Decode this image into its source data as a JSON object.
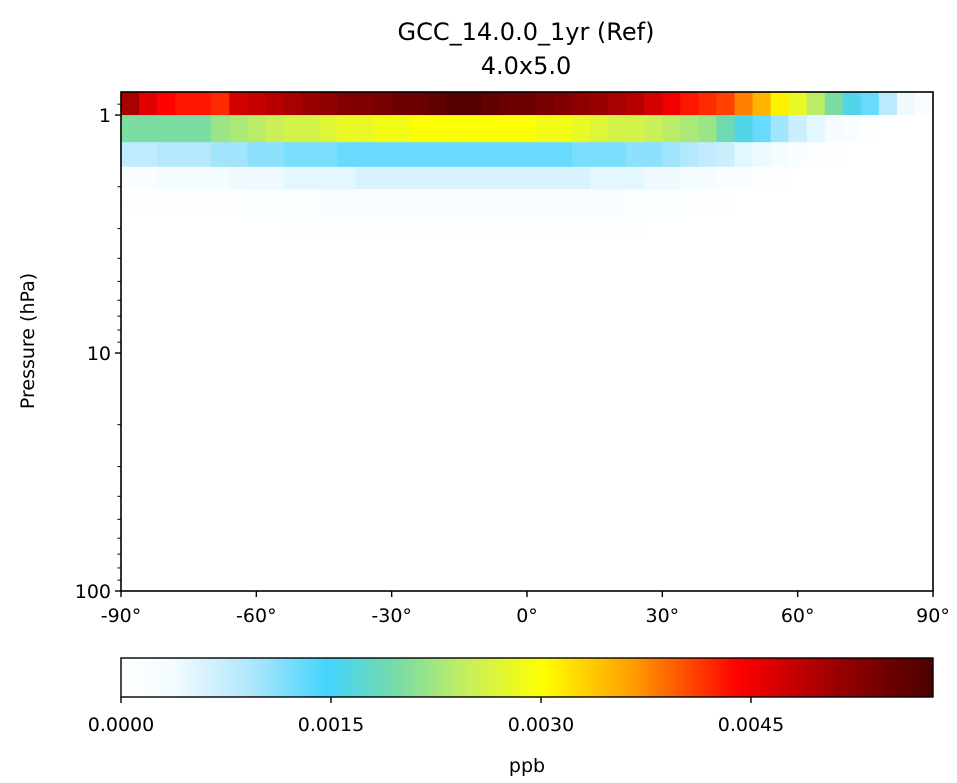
{
  "chart_data": {
    "type": "heatmap",
    "title": "GCC_14.0.0_1yr (Ref)",
    "subtitle": "4.0x5.0",
    "xlabel": "",
    "ylabel": "Pressure (hPa)",
    "x_axis": {
      "range": [
        -90,
        90
      ],
      "ticks": [
        -90,
        -60,
        -30,
        0,
        30,
        60,
        90
      ],
      "tick_labels": [
        "-90°",
        "-60°",
        "-30°",
        "0°",
        "30°",
        "60°",
        "90°"
      ]
    },
    "y_axis": {
      "scale": "log",
      "inverted": true,
      "range_hPa": [
        1.15,
        0.78
      ],
      "range": [
        100,
        0.8
      ],
      "ticks": [
        1,
        10,
        100
      ],
      "tick_labels": [
        "1",
        "10",
        "100"
      ]
    },
    "colorbar": {
      "label": "ppb",
      "range": [
        0.0,
        0.0058
      ],
      "ticks": [
        0.0,
        0.0015,
        0.003,
        0.0045
      ],
      "tick_labels": [
        "0.0000",
        "0.0015",
        "0.0030",
        "0.0045"
      ],
      "colormap": "WhGrYlRd",
      "colors": [
        "#ffffff",
        "#45d4fd",
        "#ffff00",
        "#ff0000",
        "#4a0000"
      ]
    },
    "lat_centers": [
      -88,
      -84,
      -80,
      -76,
      -72,
      -68,
      -64,
      -60,
      -56,
      -52,
      -48,
      -44,
      -40,
      -36,
      -32,
      -28,
      -24,
      -20,
      -16,
      -12,
      -8,
      -4,
      0,
      4,
      8,
      12,
      16,
      20,
      24,
      28,
      32,
      36,
      40,
      44,
      48,
      52,
      56,
      60,
      64,
      68,
      72,
      76,
      80,
      84,
      88
    ],
    "rows": [
      {
        "p_top": 0.78,
        "p_bottom": 1.0,
        "values": [
          0.005,
          0.0046,
          0.0044,
          0.0043,
          0.0043,
          0.0042,
          0.0047,
          0.0048,
          0.0049,
          0.005,
          0.0051,
          0.0052,
          0.0053,
          0.0053,
          0.0054,
          0.0055,
          0.0055,
          0.0056,
          0.0057,
          0.0057,
          0.0056,
          0.0055,
          0.0055,
          0.0054,
          0.0053,
          0.0052,
          0.0051,
          0.005,
          0.0049,
          0.0047,
          0.0045,
          0.0043,
          0.0042,
          0.0041,
          0.0038,
          0.0035,
          0.0031,
          0.0028,
          0.0024,
          0.002,
          0.0016,
          0.0013,
          0.00085,
          0.0004,
          0.00015
        ]
      },
      {
        "p_top": 1.0,
        "p_bottom": 1.3,
        "values": [
          0.002,
          0.002,
          0.002,
          0.002,
          0.002,
          0.0022,
          0.0023,
          0.0024,
          0.0025,
          0.0026,
          0.0026,
          0.0027,
          0.0028,
          0.0028,
          0.0029,
          0.0029,
          0.003,
          0.003,
          0.003,
          0.003,
          0.003,
          0.003,
          0.003,
          0.0029,
          0.0029,
          0.0028,
          0.0027,
          0.0026,
          0.0026,
          0.0025,
          0.0024,
          0.0023,
          0.0022,
          0.0019,
          0.0016,
          0.0013,
          0.001,
          0.0007,
          0.0005,
          0.0003,
          0.00015,
          5e-05,
          0.0,
          0.0,
          0.0
        ]
      },
      {
        "p_top": 1.3,
        "p_bottom": 1.65,
        "values": [
          0.0008,
          0.0008,
          0.0009,
          0.0009,
          0.0009,
          0.001,
          0.001,
          0.0011,
          0.0011,
          0.0012,
          0.0012,
          0.0012,
          0.0013,
          0.0013,
          0.0013,
          0.0013,
          0.0013,
          0.0013,
          0.0013,
          0.0013,
          0.0013,
          0.0013,
          0.0013,
          0.0013,
          0.0013,
          0.0012,
          0.0012,
          0.0012,
          0.0011,
          0.0011,
          0.001,
          0.0009,
          0.0008,
          0.0007,
          0.0005,
          0.0004,
          0.0003,
          0.0002,
          0.0001,
          5e-05,
          0.0,
          0.0,
          0.0,
          0.0,
          0.0
        ]
      },
      {
        "p_top": 1.65,
        "p_bottom": 2.05,
        "values": [
          0.0002,
          0.0002,
          0.0003,
          0.0003,
          0.0003,
          0.0003,
          0.0004,
          0.0004,
          0.0004,
          0.0005,
          0.0005,
          0.0005,
          0.0005,
          0.0006,
          0.0006,
          0.0006,
          0.0006,
          0.0006,
          0.0006,
          0.0006,
          0.0006,
          0.0006,
          0.0006,
          0.0006,
          0.0006,
          0.0006,
          0.0005,
          0.0005,
          0.0005,
          0.0004,
          0.0004,
          0.0003,
          0.0003,
          0.0002,
          0.00015,
          0.0001,
          5e-05,
          0.0,
          0.0,
          0.0,
          0.0,
          0.0,
          0.0,
          0.0,
          0.0
        ]
      },
      {
        "p_top": 2.05,
        "p_bottom": 2.6,
        "values": [
          5e-05,
          5e-05,
          0.0001,
          0.0001,
          0.0001,
          0.0001,
          0.0001,
          0.00012,
          0.00012,
          0.00013,
          0.00014,
          0.00015,
          0.00015,
          0.00016,
          0.00016,
          0.00017,
          0.00017,
          0.00017,
          0.00017,
          0.00017,
          0.00017,
          0.00017,
          0.00017,
          0.00017,
          0.00016,
          0.00016,
          0.00015,
          0.00015,
          0.00014,
          0.00013,
          0.00012,
          0.0001,
          8e-05,
          6e-05,
          4e-05,
          2e-05,
          0.0,
          0.0,
          0.0,
          0.0,
          0.0,
          0.0,
          0.0,
          0.0,
          0.0
        ]
      },
      {
        "p_top": 2.6,
        "p_bottom": 3.3,
        "values": [
          0.0,
          0.0,
          0.0,
          0.0,
          2e-05,
          3e-05,
          3e-05,
          4e-05,
          4e-05,
          5e-05,
          5e-05,
          5e-05,
          6e-05,
          6e-05,
          6e-05,
          6e-05,
          6e-05,
          6e-05,
          6e-05,
          6e-05,
          6e-05,
          6e-05,
          6e-05,
          6e-05,
          6e-05,
          6e-05,
          5e-05,
          5e-05,
          5e-05,
          4e-05,
          4e-05,
          3e-05,
          2e-05,
          1e-05,
          0.0,
          0.0,
          0.0,
          0.0,
          0.0,
          0.0,
          0.0,
          0.0,
          0.0,
          0.0,
          0.0
        ]
      }
    ]
  }
}
